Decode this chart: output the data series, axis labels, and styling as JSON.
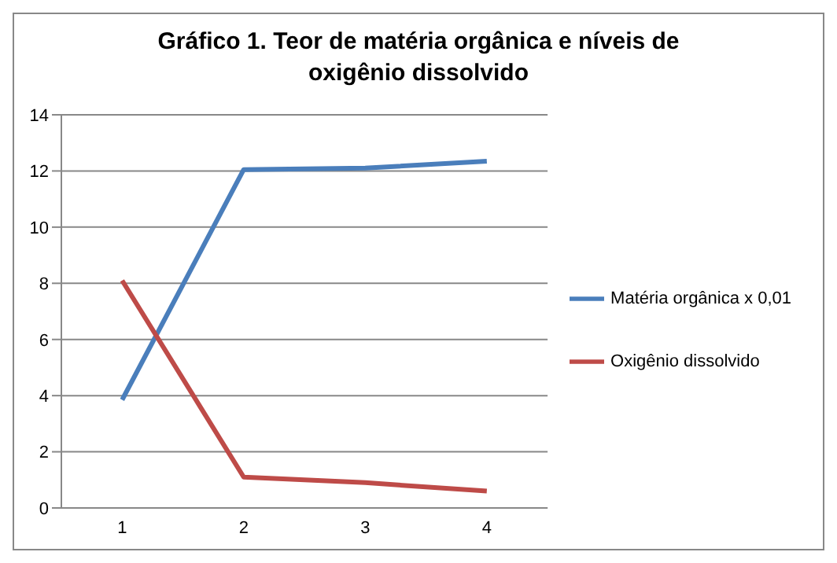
{
  "chart_data": {
    "type": "line",
    "title": "Gráfico 1. Teor de matéria orgânica e níveis de oxigênio dissolvido",
    "categories": [
      "1",
      "2",
      "3",
      "4"
    ],
    "series": [
      {
        "name": "Matéria orgânica x 0,01",
        "color": "#4a7ebb",
        "values": [
          3.85,
          12.05,
          12.1,
          12.35
        ]
      },
      {
        "name": "Oxigênio dissolvido",
        "color": "#be4b48",
        "values": [
          8.1,
          1.1,
          0.9,
          0.6
        ]
      }
    ],
    "ylim": [
      0,
      14
    ],
    "yticks": [
      0,
      2,
      4,
      6,
      8,
      10,
      12,
      14
    ],
    "grid": "y",
    "legend": "right",
    "marker": "none",
    "line_style": "solid"
  }
}
